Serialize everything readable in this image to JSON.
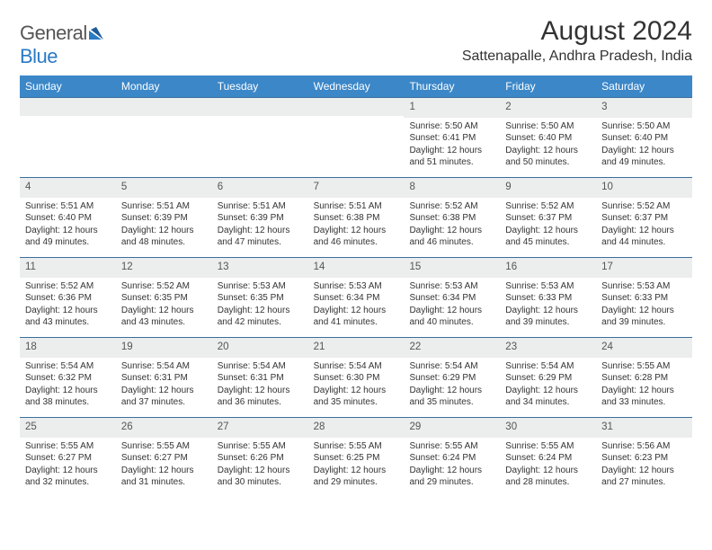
{
  "logo": {
    "text_gray": "General",
    "text_blue": "Blue"
  },
  "title": "August 2024",
  "location": "Sattenapalle, Andhra Pradesh, India",
  "colors": {
    "header_bg": "#3b87c8",
    "header_text": "#ffffff",
    "row_border": "#3b6ea0",
    "daynum_bg": "#eceded",
    "text": "#333333",
    "logo_gray": "#555555",
    "logo_blue": "#2b7ac4"
  },
  "day_names": [
    "Sunday",
    "Monday",
    "Tuesday",
    "Wednesday",
    "Thursday",
    "Friday",
    "Saturday"
  ],
  "weeks": [
    [
      {
        "n": "",
        "sr": "",
        "ss": "",
        "dl": ""
      },
      {
        "n": "",
        "sr": "",
        "ss": "",
        "dl": ""
      },
      {
        "n": "",
        "sr": "",
        "ss": "",
        "dl": ""
      },
      {
        "n": "",
        "sr": "",
        "ss": "",
        "dl": ""
      },
      {
        "n": "1",
        "sr": "Sunrise: 5:50 AM",
        "ss": "Sunset: 6:41 PM",
        "dl": "Daylight: 12 hours and 51 minutes."
      },
      {
        "n": "2",
        "sr": "Sunrise: 5:50 AM",
        "ss": "Sunset: 6:40 PM",
        "dl": "Daylight: 12 hours and 50 minutes."
      },
      {
        "n": "3",
        "sr": "Sunrise: 5:50 AM",
        "ss": "Sunset: 6:40 PM",
        "dl": "Daylight: 12 hours and 49 minutes."
      }
    ],
    [
      {
        "n": "4",
        "sr": "Sunrise: 5:51 AM",
        "ss": "Sunset: 6:40 PM",
        "dl": "Daylight: 12 hours and 49 minutes."
      },
      {
        "n": "5",
        "sr": "Sunrise: 5:51 AM",
        "ss": "Sunset: 6:39 PM",
        "dl": "Daylight: 12 hours and 48 minutes."
      },
      {
        "n": "6",
        "sr": "Sunrise: 5:51 AM",
        "ss": "Sunset: 6:39 PM",
        "dl": "Daylight: 12 hours and 47 minutes."
      },
      {
        "n": "7",
        "sr": "Sunrise: 5:51 AM",
        "ss": "Sunset: 6:38 PM",
        "dl": "Daylight: 12 hours and 46 minutes."
      },
      {
        "n": "8",
        "sr": "Sunrise: 5:52 AM",
        "ss": "Sunset: 6:38 PM",
        "dl": "Daylight: 12 hours and 46 minutes."
      },
      {
        "n": "9",
        "sr": "Sunrise: 5:52 AM",
        "ss": "Sunset: 6:37 PM",
        "dl": "Daylight: 12 hours and 45 minutes."
      },
      {
        "n": "10",
        "sr": "Sunrise: 5:52 AM",
        "ss": "Sunset: 6:37 PM",
        "dl": "Daylight: 12 hours and 44 minutes."
      }
    ],
    [
      {
        "n": "11",
        "sr": "Sunrise: 5:52 AM",
        "ss": "Sunset: 6:36 PM",
        "dl": "Daylight: 12 hours and 43 minutes."
      },
      {
        "n": "12",
        "sr": "Sunrise: 5:52 AM",
        "ss": "Sunset: 6:35 PM",
        "dl": "Daylight: 12 hours and 43 minutes."
      },
      {
        "n": "13",
        "sr": "Sunrise: 5:53 AM",
        "ss": "Sunset: 6:35 PM",
        "dl": "Daylight: 12 hours and 42 minutes."
      },
      {
        "n": "14",
        "sr": "Sunrise: 5:53 AM",
        "ss": "Sunset: 6:34 PM",
        "dl": "Daylight: 12 hours and 41 minutes."
      },
      {
        "n": "15",
        "sr": "Sunrise: 5:53 AM",
        "ss": "Sunset: 6:34 PM",
        "dl": "Daylight: 12 hours and 40 minutes."
      },
      {
        "n": "16",
        "sr": "Sunrise: 5:53 AM",
        "ss": "Sunset: 6:33 PM",
        "dl": "Daylight: 12 hours and 39 minutes."
      },
      {
        "n": "17",
        "sr": "Sunrise: 5:53 AM",
        "ss": "Sunset: 6:33 PM",
        "dl": "Daylight: 12 hours and 39 minutes."
      }
    ],
    [
      {
        "n": "18",
        "sr": "Sunrise: 5:54 AM",
        "ss": "Sunset: 6:32 PM",
        "dl": "Daylight: 12 hours and 38 minutes."
      },
      {
        "n": "19",
        "sr": "Sunrise: 5:54 AM",
        "ss": "Sunset: 6:31 PM",
        "dl": "Daylight: 12 hours and 37 minutes."
      },
      {
        "n": "20",
        "sr": "Sunrise: 5:54 AM",
        "ss": "Sunset: 6:31 PM",
        "dl": "Daylight: 12 hours and 36 minutes."
      },
      {
        "n": "21",
        "sr": "Sunrise: 5:54 AM",
        "ss": "Sunset: 6:30 PM",
        "dl": "Daylight: 12 hours and 35 minutes."
      },
      {
        "n": "22",
        "sr": "Sunrise: 5:54 AM",
        "ss": "Sunset: 6:29 PM",
        "dl": "Daylight: 12 hours and 35 minutes."
      },
      {
        "n": "23",
        "sr": "Sunrise: 5:54 AM",
        "ss": "Sunset: 6:29 PM",
        "dl": "Daylight: 12 hours and 34 minutes."
      },
      {
        "n": "24",
        "sr": "Sunrise: 5:55 AM",
        "ss": "Sunset: 6:28 PM",
        "dl": "Daylight: 12 hours and 33 minutes."
      }
    ],
    [
      {
        "n": "25",
        "sr": "Sunrise: 5:55 AM",
        "ss": "Sunset: 6:27 PM",
        "dl": "Daylight: 12 hours and 32 minutes."
      },
      {
        "n": "26",
        "sr": "Sunrise: 5:55 AM",
        "ss": "Sunset: 6:27 PM",
        "dl": "Daylight: 12 hours and 31 minutes."
      },
      {
        "n": "27",
        "sr": "Sunrise: 5:55 AM",
        "ss": "Sunset: 6:26 PM",
        "dl": "Daylight: 12 hours and 30 minutes."
      },
      {
        "n": "28",
        "sr": "Sunrise: 5:55 AM",
        "ss": "Sunset: 6:25 PM",
        "dl": "Daylight: 12 hours and 29 minutes."
      },
      {
        "n": "29",
        "sr": "Sunrise: 5:55 AM",
        "ss": "Sunset: 6:24 PM",
        "dl": "Daylight: 12 hours and 29 minutes."
      },
      {
        "n": "30",
        "sr": "Sunrise: 5:55 AM",
        "ss": "Sunset: 6:24 PM",
        "dl": "Daylight: 12 hours and 28 minutes."
      },
      {
        "n": "31",
        "sr": "Sunrise: 5:56 AM",
        "ss": "Sunset: 6:23 PM",
        "dl": "Daylight: 12 hours and 27 minutes."
      }
    ]
  ]
}
